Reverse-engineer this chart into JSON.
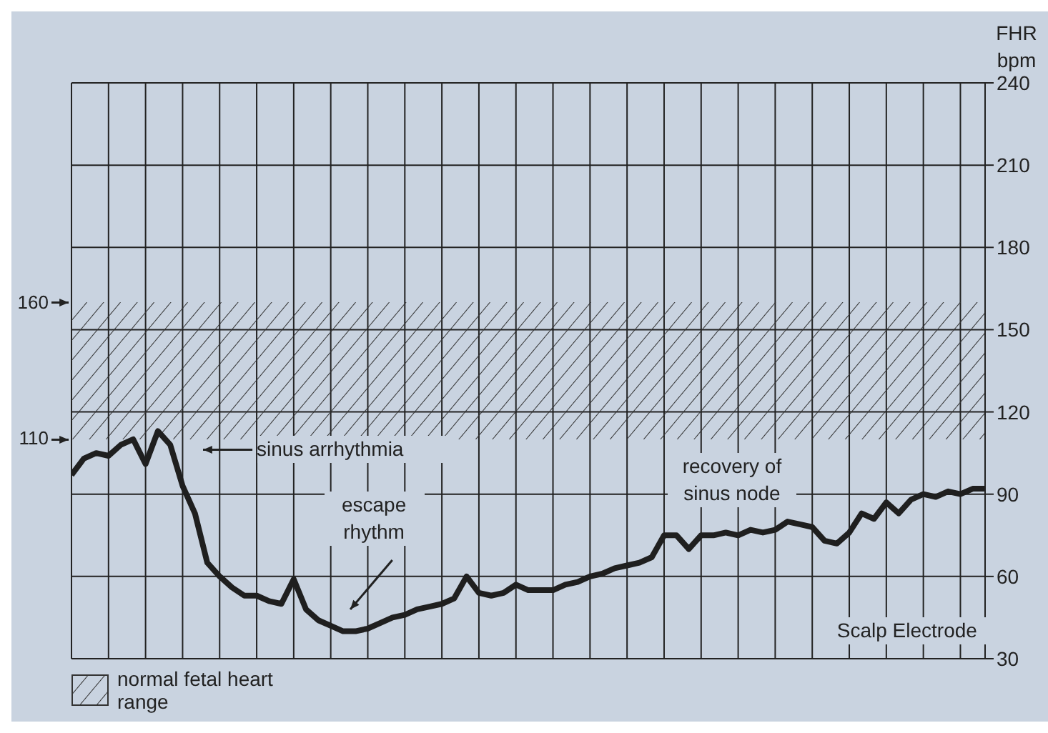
{
  "chart_data": {
    "type": "line",
    "ylabel": "FHR bpm",
    "categories": [
      null,
      null,
      null,
      null,
      null,
      null,
      null,
      null,
      null,
      null,
      null,
      null,
      null,
      null,
      null,
      null,
      null,
      null,
      null,
      null,
      null,
      null,
      null,
      null,
      null,
      null,
      null,
      null,
      null,
      null,
      null,
      null,
      null,
      null,
      null,
      null,
      null,
      null,
      null,
      null,
      null,
      null,
      null,
      null,
      null,
      null,
      null,
      null,
      null,
      null,
      null,
      null,
      null,
      null,
      null,
      null,
      null,
      null,
      null,
      null,
      null,
      null,
      null,
      null,
      null,
      null,
      null,
      null,
      null,
      null,
      null,
      null,
      null,
      null,
      null
    ],
    "series": [
      {
        "color": "#1f1f1f",
        "values": [
          97,
          103,
          105,
          104,
          108,
          110,
          101,
          113,
          108,
          93,
          83,
          65,
          60,
          56,
          53,
          53,
          51,
          50,
          59,
          48,
          44,
          42,
          40,
          40,
          41,
          43,
          45,
          46,
          48,
          49,
          50,
          52,
          60,
          54,
          53,
          54,
          57,
          55,
          55,
          55,
          57,
          58,
          60,
          61,
          63,
          64,
          65,
          67,
          75,
          75,
          70,
          75,
          75,
          76,
          75,
          77,
          76,
          77,
          80,
          79,
          78,
          73,
          72,
          76,
          83,
          81,
          87,
          83,
          88,
          90,
          89,
          91,
          90,
          92,
          92
        ]
      }
    ],
    "ylim": [
      30,
      240
    ],
    "yticks": [
      30,
      60,
      90,
      120,
      150,
      180,
      210,
      240
    ],
    "grid": true,
    "tick_labels": "y",
    "marker": "none",
    "line_style": "solid",
    "bands": [
      {
        "axis": "y",
        "from": 110,
        "to": 160,
        "label": "normal fetal heart range",
        "color": "#333333"
      }
    ],
    "annotations": [
      "160",
      "110",
      "sinus arrhythmia",
      "escape rhythm",
      "recovery of sinus node",
      "Scalp Electrode"
    ]
  }
}
